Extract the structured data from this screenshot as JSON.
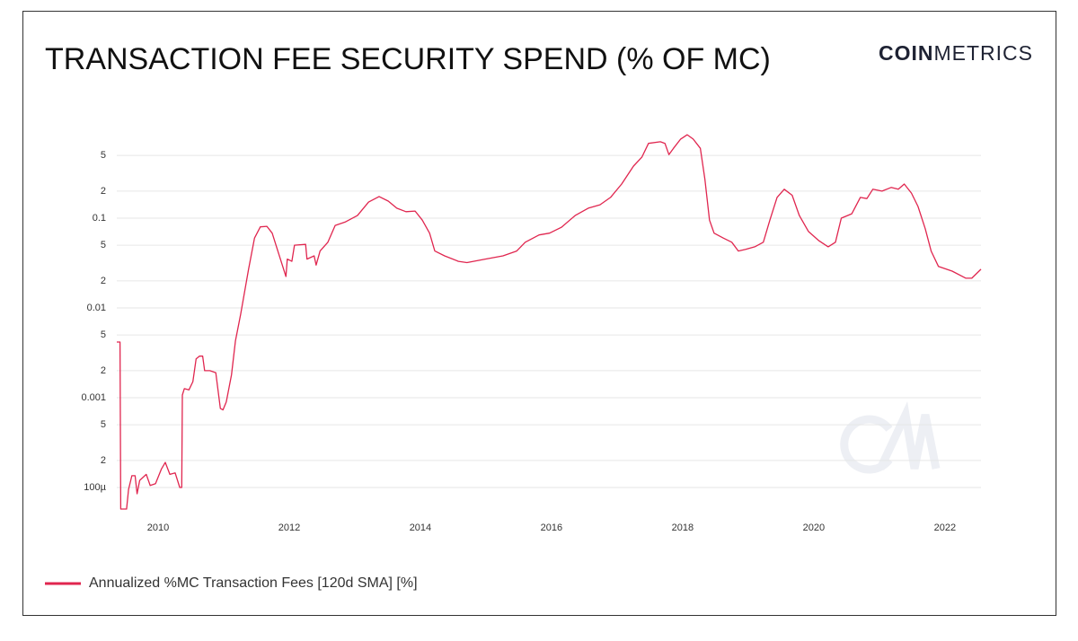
{
  "logo": {
    "bold": "COIN",
    "light": "METRICS"
  },
  "chart_data": {
    "type": "line",
    "title": "TRANSACTION FEE SECURITY SPEND (% OF MC)",
    "x": [
      2009.37,
      2009.42,
      2009.43,
      2009.52,
      2009.55,
      2009.6,
      2009.65,
      2009.68,
      2009.72,
      2009.82,
      2009.88,
      2009.96,
      2010.05,
      2010.11,
      2010.18,
      2010.26,
      2010.33,
      2010.36,
      2010.37,
      2010.4,
      2010.47,
      2010.53,
      2010.58,
      2010.63,
      2010.68,
      2010.71,
      2010.79,
      2010.88,
      2010.95,
      2010.99,
      2011.04,
      2011.12,
      2011.18,
      2011.26,
      2011.38,
      2011.47,
      2011.56,
      2011.66,
      2011.74,
      2011.84,
      2011.95,
      2011.97,
      2012.04,
      2012.08,
      2012.25,
      2012.27,
      2012.38,
      2012.41,
      2012.47,
      2012.59,
      2012.7,
      2012.86,
      2013.04,
      2013.21,
      2013.37,
      2013.51,
      2013.64,
      2013.78,
      2013.92,
      2014.03,
      2014.14,
      2014.22,
      2014.37,
      2014.58,
      2014.71,
      2014.99,
      2015.26,
      2015.47,
      2015.6,
      2015.81,
      2015.97,
      2016.15,
      2016.36,
      2016.56,
      2016.74,
      2016.9,
      2017.07,
      2017.25,
      2017.38,
      2017.48,
      2017.66,
      2017.73,
      2017.79,
      2017.86,
      2017.97,
      2018.07,
      2018.16,
      2018.27,
      2018.34,
      2018.41,
      2018.48,
      2018.62,
      2018.75,
      2018.85,
      2018.96,
      2019.1,
      2019.23,
      2019.33,
      2019.44,
      2019.55,
      2019.67,
      2019.78,
      2019.92,
      2020.08,
      2020.22,
      2020.33,
      2020.42,
      2020.58,
      2020.71,
      2020.81,
      2020.9,
      2021.04,
      2021.18,
      2021.29,
      2021.38,
      2021.49,
      2021.59,
      2021.7,
      2021.79,
      2021.9,
      2022.11,
      2022.32,
      2022.41,
      2022.55
    ],
    "series": [
      {
        "name": "Annualized %MC Transaction Fees [120d SMA] [%]",
        "color": "#e0264f",
        "values": [
          0.00417,
          0.00417,
          5.75e-05,
          5.75e-05,
          9.5e-05,
          0.000135,
          0.000135,
          8.5e-05,
          0.00012,
          0.00014,
          0.000105,
          0.00011,
          0.00016,
          0.00019,
          0.00014,
          0.000145,
          0.0001,
          0.0001,
          0.00107,
          0.00126,
          0.00122,
          0.00151,
          0.0027,
          0.0029,
          0.0029,
          0.002,
          0.002,
          0.0019,
          0.00076,
          0.00073,
          0.0009,
          0.0018,
          0.0043,
          0.0085,
          0.027,
          0.06,
          0.08,
          0.081,
          0.068,
          0.04,
          0.0224,
          0.035,
          0.033,
          0.05,
          0.051,
          0.035,
          0.038,
          0.03,
          0.043,
          0.054,
          0.083,
          0.091,
          0.107,
          0.151,
          0.174,
          0.155,
          0.129,
          0.118,
          0.12,
          0.095,
          0.068,
          0.043,
          0.038,
          0.033,
          0.032,
          0.035,
          0.038,
          0.043,
          0.054,
          0.065,
          0.068,
          0.079,
          0.107,
          0.129,
          0.141,
          0.17,
          0.24,
          0.38,
          0.48,
          0.68,
          0.71,
          0.68,
          0.51,
          0.6,
          0.76,
          0.85,
          0.76,
          0.6,
          0.27,
          0.095,
          0.068,
          0.06,
          0.054,
          0.043,
          0.045,
          0.048,
          0.054,
          0.095,
          0.17,
          0.21,
          0.18,
          0.107,
          0.071,
          0.056,
          0.048,
          0.054,
          0.1,
          0.112,
          0.17,
          0.165,
          0.21,
          0.2,
          0.22,
          0.21,
          0.24,
          0.19,
          0.135,
          0.076,
          0.043,
          0.029,
          0.0257,
          0.0214,
          0.0214,
          0.027
        ]
      }
    ],
    "xlim": [
      2009.37,
      2022.55
    ],
    "xticks": [
      2010,
      2012,
      2014,
      2016,
      2018,
      2020,
      2022
    ],
    "ylim": [
      5.75e-05,
      1
    ],
    "yscale": "log",
    "yticks": [
      {
        "value": 0.0001,
        "label": "100µ"
      },
      {
        "value": 0.0002,
        "label": "2"
      },
      {
        "value": 0.0005,
        "label": "5"
      },
      0.001,
      {
        "value": 0.002,
        "label": "2"
      },
      {
        "value": 0.005,
        "label": "5"
      },
      0.01,
      {
        "value": 0.02,
        "label": "2"
      },
      {
        "value": 0.05,
        "label": "5"
      },
      0.1,
      {
        "value": 0.2,
        "label": "2"
      },
      {
        "value": 0.5,
        "label": "5"
      }
    ],
    "grid": true,
    "legend": "bottom-left"
  }
}
